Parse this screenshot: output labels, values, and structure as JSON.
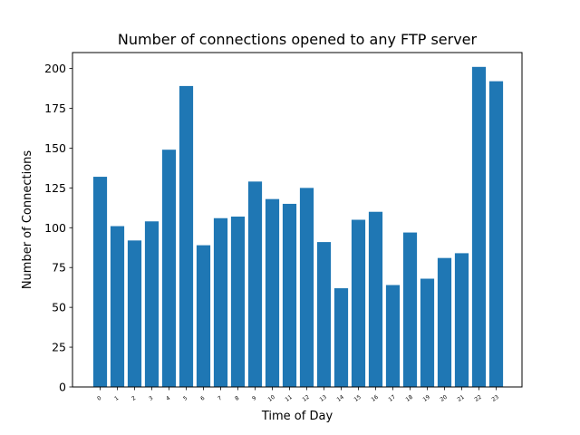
{
  "chart_data": {
    "type": "bar",
    "title": "Number of connections opened to any FTP server",
    "xlabel": "Time of Day",
    "ylabel": "Number of Connections",
    "categories": [
      "0",
      "1",
      "2",
      "3",
      "4",
      "5",
      "6",
      "7",
      "8",
      "9",
      "10",
      "11",
      "12",
      "13",
      "14",
      "15",
      "16",
      "17",
      "18",
      "19",
      "20",
      "21",
      "22",
      "23"
    ],
    "values": [
      132,
      101,
      92,
      104,
      149,
      189,
      89,
      106,
      107,
      129,
      118,
      115,
      125,
      91,
      62,
      105,
      110,
      64,
      97,
      68,
      81,
      84,
      201,
      192
    ],
    "ylim": [
      0,
      210
    ],
    "yticks": [
      0,
      25,
      50,
      75,
      100,
      125,
      150,
      175,
      200
    ],
    "grid": false,
    "legend": "none",
    "bar_color": "#1f77b4"
  }
}
